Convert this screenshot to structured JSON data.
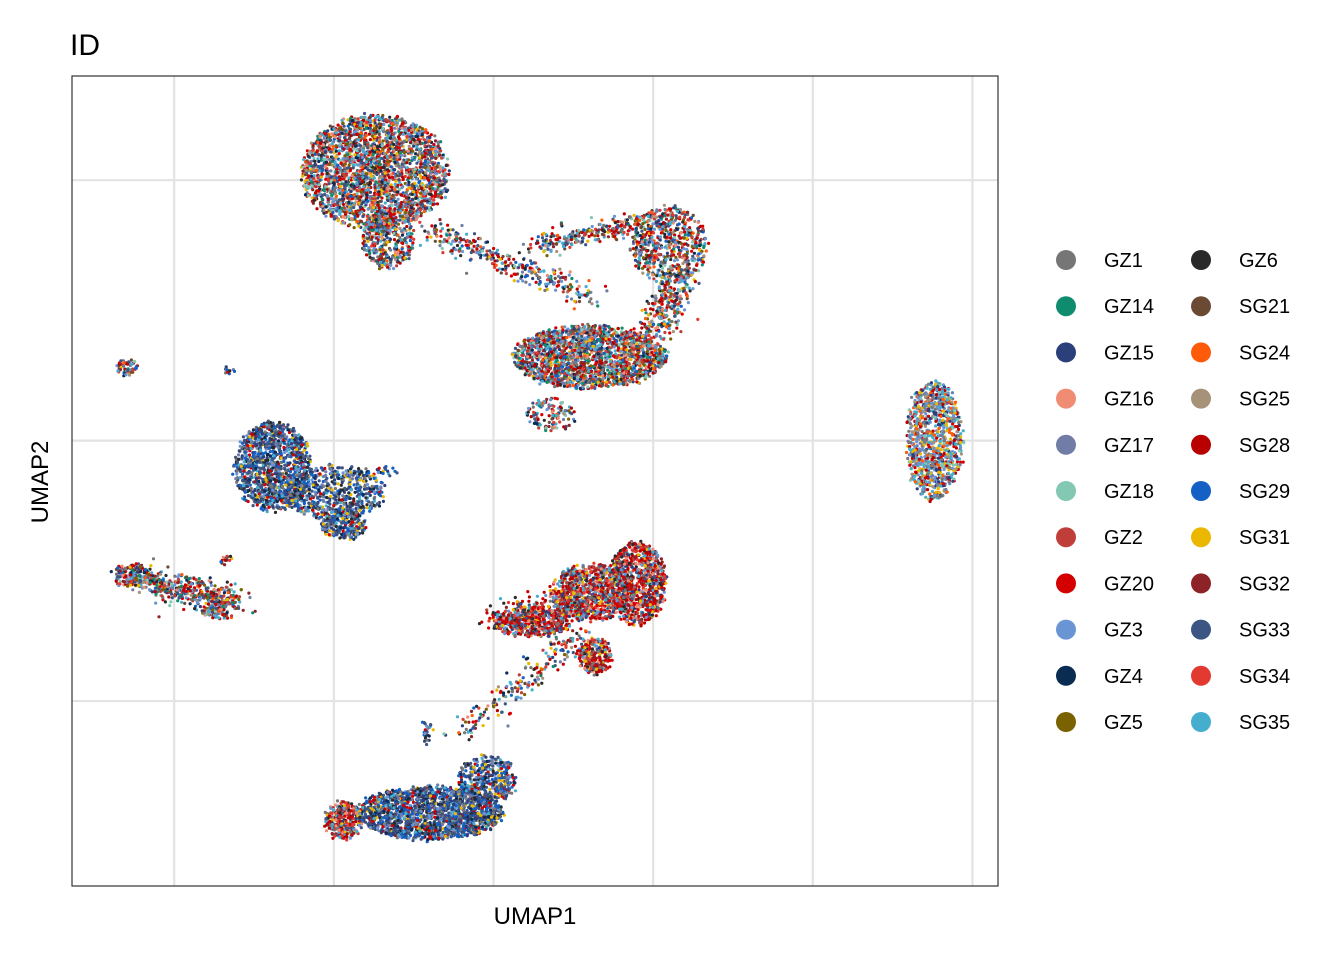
{
  "chart_data": {
    "type": "scatter",
    "title": "ID",
    "xlabel": "UMAP1",
    "ylabel": "UMAP2",
    "xlim": [
      -12.7,
      16.3
    ],
    "ylim": [
      -17.1,
      14.0
    ],
    "x_gridlines": [
      -9.5,
      -4.5,
      0.5,
      5.5,
      10.5,
      15.5
    ],
    "y_gridlines": [
      10,
      0,
      -10
    ],
    "grid": true,
    "show_tick_labels": false,
    "legend_position": "right",
    "legend": [
      {
        "name": "GZ1",
        "color": "#767676"
      },
      {
        "name": "GZ14",
        "color": "#0F8C6E"
      },
      {
        "name": "GZ15",
        "color": "#2B3F7A"
      },
      {
        "name": "GZ16",
        "color": "#F08C74"
      },
      {
        "name": "GZ17",
        "color": "#717DA6"
      },
      {
        "name": "GZ18",
        "color": "#82C8B2"
      },
      {
        "name": "GZ2",
        "color": "#C03E3A"
      },
      {
        "name": "GZ20",
        "color": "#D40000"
      },
      {
        "name": "GZ3",
        "color": "#6A95D5"
      },
      {
        "name": "GZ4",
        "color": "#0A2B52"
      },
      {
        "name": "GZ5",
        "color": "#7A6200"
      },
      {
        "name": "GZ6",
        "color": "#2A2A2A"
      },
      {
        "name": "SG21",
        "color": "#6A4A33"
      },
      {
        "name": "SG24",
        "color": "#FF5A0A"
      },
      {
        "name": "SG25",
        "color": "#A59278"
      },
      {
        "name": "SG28",
        "color": "#B80000"
      },
      {
        "name": "SG29",
        "color": "#1460C4"
      },
      {
        "name": "SG31",
        "color": "#EAB800"
      },
      {
        "name": "SG32",
        "color": "#8E2327"
      },
      {
        "name": "SG33",
        "color": "#3C5583"
      },
      {
        "name": "SG34",
        "color": "#E23A30"
      },
      {
        "name": "SG35",
        "color": "#45AECF"
      }
    ],
    "clusters": [
      {
        "shape": "ellipse",
        "cx": -3.2,
        "cy": 10.3,
        "rx": 2.3,
        "ry": 2.2,
        "n": 2600,
        "mix": "general"
      },
      {
        "shape": "ellipse",
        "cx": -2.8,
        "cy": 7.7,
        "rx": 0.8,
        "ry": 1.1,
        "n": 400,
        "mix": "general"
      },
      {
        "shape": "bridge",
        "x1": -1.5,
        "y1": 8.1,
        "x2": 3.5,
        "y2": 5.5,
        "spread": 0.25,
        "n": 320,
        "mix": "general"
      },
      {
        "shape": "bridge",
        "x1": 1.8,
        "y1": 7.5,
        "x2": 5.2,
        "y2": 8.4,
        "spread": 0.2,
        "n": 250,
        "mix": "general"
      },
      {
        "shape": "ellipse",
        "cx": 6.0,
        "cy": 7.5,
        "rx": 1.2,
        "ry": 1.5,
        "n": 650,
        "mix": "general"
      },
      {
        "shape": "bridge",
        "x1": 6.3,
        "y1": 6.0,
        "x2": 5.5,
        "y2": 4.2,
        "spread": 0.3,
        "n": 250,
        "mix": "general"
      },
      {
        "shape": "ellipse",
        "cx": 3.5,
        "cy": 3.2,
        "rx": 2.4,
        "ry": 1.2,
        "n": 2000,
        "mix": "general"
      },
      {
        "shape": "ellipse",
        "cx": 2.3,
        "cy": 1.0,
        "rx": 0.8,
        "ry": 0.6,
        "n": 120,
        "mix": "general"
      },
      {
        "shape": "ellipse",
        "cx": 14.3,
        "cy": 0.0,
        "rx": 0.85,
        "ry": 2.3,
        "n": 1000,
        "mix": "light"
      },
      {
        "shape": "ellipse",
        "cx": -11.0,
        "cy": 2.8,
        "rx": 0.3,
        "ry": 0.3,
        "n": 60,
        "mix": "general"
      },
      {
        "shape": "ellipse",
        "cx": -7.8,
        "cy": 2.7,
        "rx": 0.15,
        "ry": 0.15,
        "n": 12,
        "mix": "blue"
      },
      {
        "shape": "ellipse",
        "cx": -6.4,
        "cy": -1.0,
        "rx": 1.2,
        "ry": 1.7,
        "n": 1200,
        "mix": "blue"
      },
      {
        "shape": "ellipse",
        "cx": -4.5,
        "cy": -2.0,
        "rx": 1.6,
        "ry": 1.0,
        "n": 600,
        "mix": "blue"
      },
      {
        "shape": "ellipse",
        "cx": -4.2,
        "cy": -3.2,
        "rx": 0.7,
        "ry": 0.6,
        "n": 250,
        "mix": "blue"
      },
      {
        "shape": "bridge",
        "x1": -4.0,
        "y1": -1.4,
        "x2": -2.4,
        "y2": -1.0,
        "spread": 0.12,
        "n": 40,
        "mix": "blue"
      },
      {
        "shape": "ellipse",
        "cx": -10.8,
        "cy": -5.2,
        "rx": 0.6,
        "ry": 0.45,
        "n": 200,
        "mix": "general"
      },
      {
        "shape": "bridge",
        "x1": -10.5,
        "y1": -5.4,
        "x2": -7.5,
        "y2": -6.2,
        "spread": 0.3,
        "n": 400,
        "mix": "general"
      },
      {
        "shape": "ellipse",
        "cx": -8.2,
        "cy": -6.5,
        "rx": 0.45,
        "ry": 0.3,
        "n": 80,
        "mix": "general"
      },
      {
        "shape": "ellipse",
        "cx": -7.9,
        "cy": -4.6,
        "rx": 0.15,
        "ry": 0.2,
        "n": 15,
        "mix": "general"
      },
      {
        "shape": "ellipse",
        "cx": 1.7,
        "cy": -7.0,
        "rx": 1.2,
        "ry": 0.5,
        "n": 450,
        "mix": "red"
      },
      {
        "shape": "bridge",
        "x1": 0.5,
        "y1": -6.8,
        "x2": 3.5,
        "y2": -6.2,
        "spread": 0.25,
        "n": 300,
        "mix": "red"
      },
      {
        "shape": "ellipse",
        "cx": 3.6,
        "cy": -5.8,
        "rx": 1.3,
        "ry": 1.1,
        "n": 900,
        "mix": "red"
      },
      {
        "shape": "ellipse",
        "cx": 5.0,
        "cy": -5.5,
        "rx": 0.9,
        "ry": 1.6,
        "n": 900,
        "mix": "red"
      },
      {
        "shape": "ellipse",
        "cx": 3.7,
        "cy": -8.3,
        "rx": 0.5,
        "ry": 0.7,
        "n": 250,
        "mix": "red"
      },
      {
        "shape": "bridge",
        "x1": 3.2,
        "y1": -7.5,
        "x2": -0.5,
        "y2": -11.2,
        "spread": 0.25,
        "n": 200,
        "mix": "general"
      },
      {
        "shape": "ellipse",
        "cx": -1.6,
        "cy": -11.2,
        "rx": 0.15,
        "ry": 0.4,
        "n": 25,
        "mix": "blue"
      },
      {
        "shape": "ellipse",
        "cx": -1.5,
        "cy": -14.3,
        "rx": 2.3,
        "ry": 1.0,
        "n": 1800,
        "mix": "blue"
      },
      {
        "shape": "ellipse",
        "cx": 0.3,
        "cy": -13.0,
        "rx": 0.9,
        "ry": 0.9,
        "n": 400,
        "mix": "blue"
      },
      {
        "shape": "ellipse",
        "cx": -4.2,
        "cy": -14.6,
        "rx": 0.6,
        "ry": 0.7,
        "n": 300,
        "mix": "red"
      }
    ]
  }
}
